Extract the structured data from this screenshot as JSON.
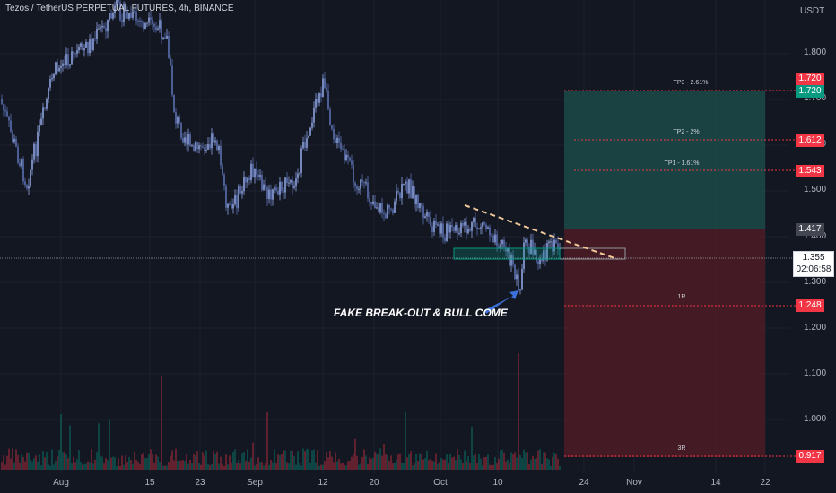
{
  "chart_title": "Tezos / TetherUS PERPETUAL FUTURES, 4h, BINANCE",
  "currency_label": "USDT",
  "price_axis_ticks": [
    "1.800",
    "1.700",
    "1.600",
    "1.500",
    "1.400",
    "1.300",
    "1.200",
    "1.100",
    "1.000"
  ],
  "time_axis_ticks": [
    "Aug",
    "15",
    "23",
    "Sep",
    "12",
    "20",
    "Oct",
    "10",
    "24",
    "Nov",
    "14",
    "22"
  ],
  "price_tags": {
    "tp3_red": "1.720",
    "tp3_green": "1.720",
    "tp2": "1.612",
    "tp1": "1.543",
    "entry": "1.417",
    "sl": "1.248",
    "r3": "0.917"
  },
  "last_price": {
    "value": "1.355",
    "countdown": "02:06:58"
  },
  "level_labels": {
    "tp3": "TP3 - 2.61%",
    "tp2": "TP2 - 2%",
    "tp1": "TP1 - 1.61%",
    "r1": "1R",
    "r3": "3R"
  },
  "annotation": "FAKE BREAK-OUT & BULL COME",
  "colors": {
    "background": "#131722",
    "candle_up": "#8fa3e0",
    "candle_down": "#5b6fb0",
    "profit_zone": "#1c4a48",
    "loss_zone": "#4e1b25",
    "tag_red": "#f23645",
    "tag_green": "#089981",
    "annotation_arrow": "#3d6fd8"
  }
}
